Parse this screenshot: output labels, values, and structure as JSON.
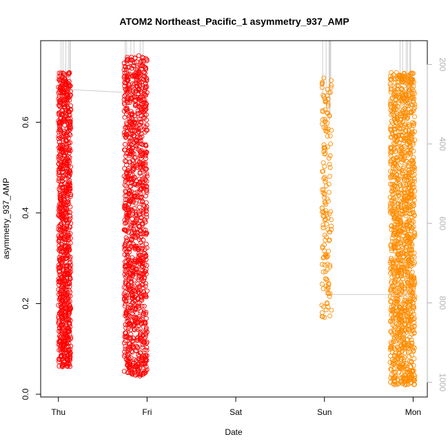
{
  "chart_data": {
    "type": "scatter",
    "title": "ATOM2 Northeast_Pacific_1 asymmetry_937_AMP",
    "xlabel": "Date",
    "ylabel": "asymmetry_937_AMP",
    "x_ticks": [
      "Thu",
      "Fri",
      "Sat",
      "Sun",
      "Mon"
    ],
    "x_range_days": [
      -0.2,
      4.16
    ],
    "ylim": [
      0,
      0.78
    ],
    "y_ticks": [
      0.0,
      0.2,
      0.4,
      0.6
    ],
    "y2_ticks": [
      200,
      400,
      600,
      800,
      1000
    ],
    "y2_range": [
      1030,
      140
    ],
    "y2_direction": "inverted",
    "grid": false,
    "legend": "none",
    "point_marker": "open-circle",
    "profile_line_color": "#cccccc",
    "series": [
      {
        "color": "#ff0000",
        "clusters": [
          {
            "x_range_days": [
              0.0,
              0.14
            ],
            "y_min": 0.06,
            "y_max": 0.71,
            "n": 900
          },
          {
            "x_range_days": [
              0.74,
              1.0
            ],
            "y_min": 0.04,
            "y_max": 0.75,
            "n": 1100
          }
        ]
      },
      {
        "color": "#ff8c00",
        "clusters": [
          {
            "x_range_days": [
              2.97,
              3.08
            ],
            "y_min": 0.16,
            "y_max": 0.7,
            "n": 160
          },
          {
            "x_range_days": [
              3.74,
              4.02
            ],
            "y_min": 0.02,
            "y_max": 0.71,
            "n": 1300
          }
        ]
      }
    ],
    "profile_segments": [
      {
        "from": [
          0.14,
          0.672
        ],
        "to": [
          0.82,
          0.665
        ]
      },
      {
        "from": [
          3.0,
          0.22
        ],
        "to": [
          4.02,
          0.22
        ]
      }
    ]
  }
}
